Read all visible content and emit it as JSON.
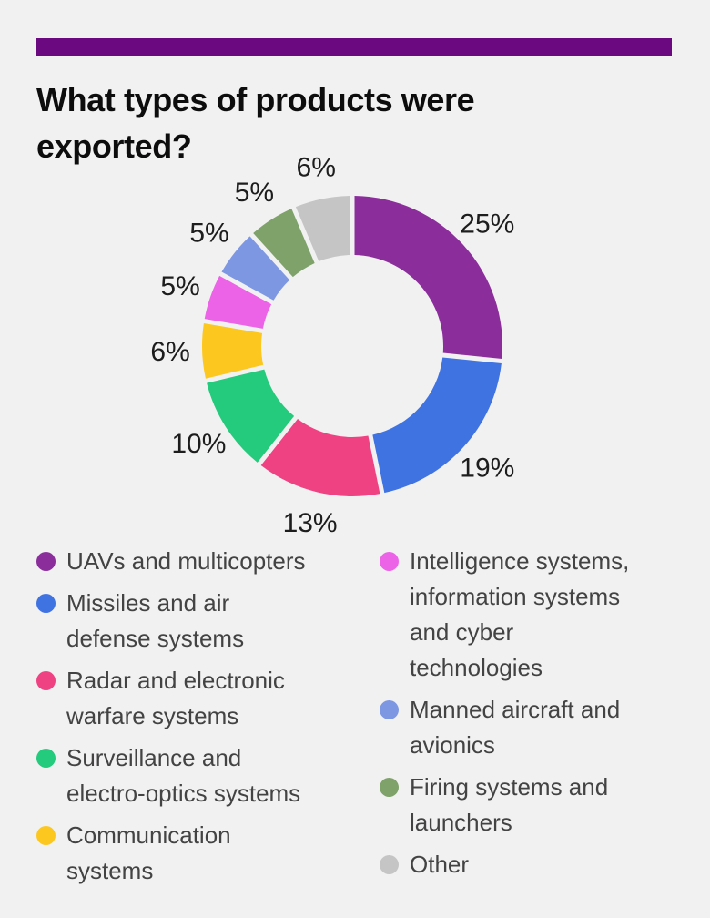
{
  "page": {
    "background_color": "#f2f1f2",
    "accent_bar_color": "#6b0a80"
  },
  "title": "What types of products were\nexported?",
  "chart_data": {
    "type": "pie",
    "subtype": "donut",
    "title": "What types of products were exported?",
    "categories": [
      "UAVs and multicopters",
      "Missiles and air defense systems",
      "Radar and electronic warfare systems",
      "Surveillance and electro-optics systems",
      "Communication systems",
      "Intelligence systems, information systems and cyber technologies",
      "Manned aircraft and avionics",
      "Firing systems and launchers",
      "Other"
    ],
    "values": [
      25,
      19,
      13,
      10,
      6,
      5,
      5,
      5,
      6
    ],
    "unit": "%",
    "value_labels": [
      "25%",
      "19%",
      "13%",
      "10%",
      "6%",
      "5%",
      "5%",
      "5%",
      "6%"
    ],
    "colors": [
      "#8b2e9c",
      "#4073e2",
      "#ef4283",
      "#24cb7d",
      "#fcc820",
      "#ec63e8",
      "#7d97e2",
      "#7ea26a",
      "#c5c5c5"
    ],
    "start_angle_deg": 0,
    "direction": "clockwise",
    "donut_hole_ratio": 0.61,
    "legend_position": "bottom"
  },
  "legend": {
    "left_items": [
      {
        "label": "UAVs and multicopters",
        "color": "#8b2e9c"
      },
      {
        "label": "Missiles and air\ndefense systems",
        "color": "#4073e2"
      },
      {
        "label": "Radar and electronic\nwarfare systems",
        "color": "#ef4283"
      },
      {
        "label": "Surveillance and\nelectro-optics systems",
        "color": "#24cb7d"
      },
      {
        "label": "Communication\nsystems",
        "color": "#fcc820"
      }
    ],
    "right_items": [
      {
        "label": "Intelligence systems,\ninformation systems\nand cyber\ntechnologies",
        "color": "#ec63e8"
      },
      {
        "label": "Manned aircraft and\navionics",
        "color": "#7d97e2"
      },
      {
        "label": "Firing systems and\nlaunchers",
        "color": "#7ea26a"
      },
      {
        "label": "Other",
        "color": "#c5c5c5"
      }
    ]
  },
  "text_colors": {
    "title": "#0d0d0d",
    "value_labels": "#1d1d1d",
    "legend": "#434343"
  }
}
